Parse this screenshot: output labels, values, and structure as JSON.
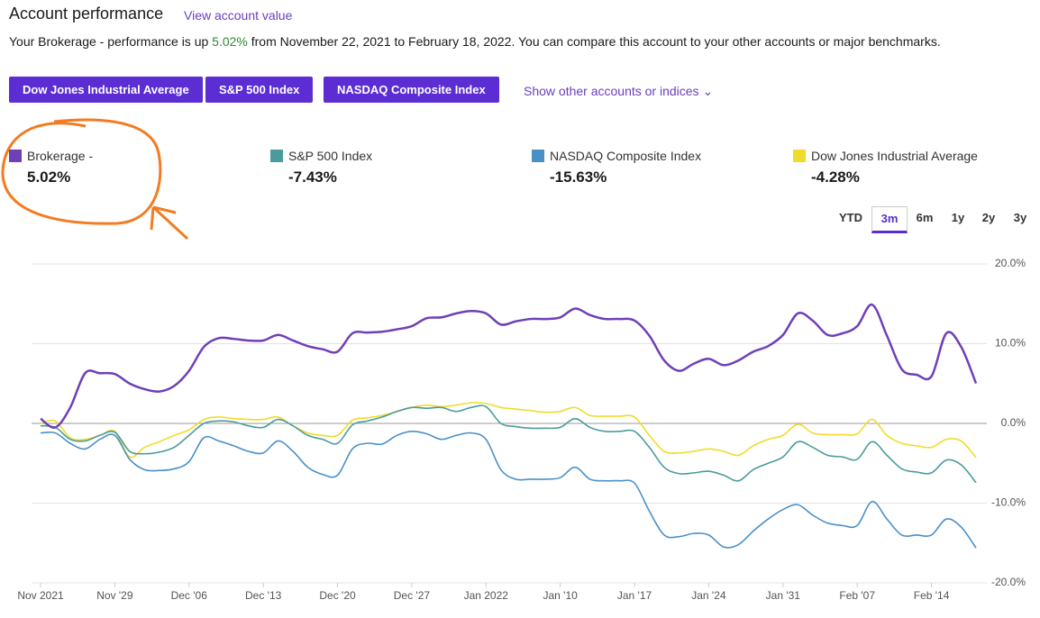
{
  "header": {
    "title": "Account performance",
    "link": "View account value",
    "sentence_before": "Your Brokerage - performance is up",
    "gain": "5.02%",
    "sentence_after": "from November 22, 2021 to February 18, 2022. You can compare this account to your other accounts or major benchmarks."
  },
  "buttons": [
    "Dow Jones Industrial Average",
    "S&P 500 Index",
    "NASDAQ Composite Index"
  ],
  "more_link": "Show other accounts or indices",
  "summary": [
    "5.02%",
    "-7.43%",
    "-15.63%",
    "-4.28%"
  ],
  "ranges": [
    "YTD",
    "3m",
    "6m",
    "1y",
    "2y",
    "3y"
  ],
  "active_range": 1,
  "chart_data": {
    "type": "line",
    "categories": [
      "Nov 2021",
      null,
      null,
      null,
      null,
      "Nov '29",
      null,
      null,
      null,
      null,
      "Dec '06",
      null,
      null,
      null,
      null,
      "Dec '13",
      null,
      null,
      null,
      null,
      "Dec '20",
      null,
      null,
      null,
      null,
      "Dec '27",
      null,
      null,
      null,
      null,
      "Jan 2022",
      null,
      null,
      null,
      null,
      "Jan '10",
      null,
      null,
      null,
      null,
      "Jan '17",
      null,
      null,
      null,
      null,
      "Jan '24",
      null,
      null,
      null,
      null,
      "Jan '31",
      null,
      null,
      null,
      null,
      "Feb '07",
      null,
      null,
      null,
      null,
      "Feb '14",
      null,
      null,
      null
    ],
    "series": [
      {
        "name": "Brokerage -",
        "color": "#6f3fb8",
        "values": [
          0.6,
          -0.5,
          2.0,
          6.3,
          6.3,
          6.2,
          5.0,
          4.3,
          4.0,
          4.7,
          6.6,
          9.6,
          10.7,
          10.6,
          10.4,
          10.4,
          11.1,
          10.4,
          9.7,
          9.3,
          9.0,
          11.3,
          11.4,
          11.5,
          11.8,
          12.2,
          13.2,
          13.3,
          13.8,
          14.1,
          13.8,
          12.4,
          12.8,
          13.1,
          13.1,
          13.3,
          14.4,
          13.6,
          13.1,
          13.1,
          12.9,
          11.0,
          7.9,
          6.6,
          7.5,
          8.1,
          7.3,
          7.9,
          9.0,
          9.7,
          11.1,
          13.8,
          12.9,
          11.1,
          11.3,
          12.2,
          14.9,
          11.0,
          6.8,
          6.1,
          5.9,
          11.3,
          9.6,
          5.02
        ]
      },
      {
        "name": "S&P 500 Index",
        "color": "#4a9c9c",
        "values": [
          -0.3,
          -0.5,
          -2.0,
          -2.2,
          -1.5,
          -1.1,
          -3.5,
          -3.8,
          -3.6,
          -3.0,
          -1.5,
          0.0,
          0.3,
          0.2,
          -0.3,
          -0.5,
          0.5,
          -0.3,
          -1.5,
          -2.0,
          -2.5,
          -0.2,
          0.3,
          0.8,
          1.5,
          2.0,
          1.9,
          2.0,
          1.5,
          2.0,
          2.1,
          0.0,
          -0.4,
          -0.6,
          -0.6,
          -0.5,
          0.6,
          -0.5,
          -1.0,
          -1.0,
          -1.0,
          -3.0,
          -5.5,
          -6.3,
          -6.2,
          -6.0,
          -6.5,
          -7.2,
          -5.8,
          -5.0,
          -4.2,
          -2.3,
          -3.0,
          -4.0,
          -4.2,
          -4.5,
          -2.3,
          -4.0,
          -5.7,
          -6.1,
          -6.2,
          -4.6,
          -5.2,
          -7.43
        ]
      },
      {
        "name": "NASDAQ Composite Index",
        "color": "#4a90c8",
        "values": [
          -1.2,
          -1.2,
          -2.5,
          -3.2,
          -2.0,
          -1.5,
          -4.5,
          -5.8,
          -5.9,
          -5.7,
          -4.8,
          -1.8,
          -2.2,
          -2.8,
          -3.5,
          -3.7,
          -2.2,
          -3.5,
          -5.5,
          -6.4,
          -6.5,
          -3.2,
          -2.5,
          -2.6,
          -1.5,
          -1.0,
          -1.3,
          -2.0,
          -1.5,
          -1.2,
          -2.0,
          -5.8,
          -7.0,
          -7.0,
          -7.0,
          -6.8,
          -5.5,
          -7.0,
          -7.2,
          -7.2,
          -7.5,
          -11.0,
          -14.0,
          -14.2,
          -13.8,
          -14.0,
          -15.5,
          -15.2,
          -13.5,
          -12.0,
          -10.8,
          -10.2,
          -11.5,
          -12.5,
          -12.8,
          -12.8,
          -9.8,
          -12.0,
          -14.0,
          -14.0,
          -14.0,
          -12.0,
          -13.0,
          -15.63
        ]
      },
      {
        "name": "Dow Jones Industrial Average",
        "color": "#f0dc2a",
        "values": [
          0.0,
          0.3,
          -1.8,
          -2.0,
          -1.5,
          -1.0,
          -4.2,
          -3.0,
          -2.3,
          -1.5,
          -0.8,
          0.5,
          0.8,
          0.6,
          0.5,
          0.5,
          0.8,
          -0.3,
          -1.2,
          -1.5,
          -1.5,
          0.4,
          0.7,
          1.0,
          1.5,
          2.0,
          2.3,
          2.1,
          2.3,
          2.6,
          2.5,
          2.0,
          1.8,
          1.6,
          1.4,
          1.5,
          2.0,
          1.0,
          0.9,
          0.9,
          0.8,
          -1.5,
          -3.5,
          -3.7,
          -3.5,
          -3.2,
          -3.5,
          -4.0,
          -2.8,
          -2.0,
          -1.5,
          -0.1,
          -1.2,
          -1.4,
          -1.4,
          -1.3,
          0.5,
          -1.5,
          -2.5,
          -2.8,
          -3.0,
          -2.0,
          -2.2,
          -4.28
        ]
      }
    ],
    "ylim": [
      -20,
      20
    ],
    "yticks": [
      {
        "value": 20,
        "label": "20.0%"
      },
      {
        "value": 10,
        "label": "10.0%"
      },
      {
        "value": 0,
        "label": "0.0%"
      },
      {
        "value": -10,
        "label": "-10.0%"
      },
      {
        "value": -20,
        "label": "-20.0%"
      }
    ],
    "grid": true
  }
}
